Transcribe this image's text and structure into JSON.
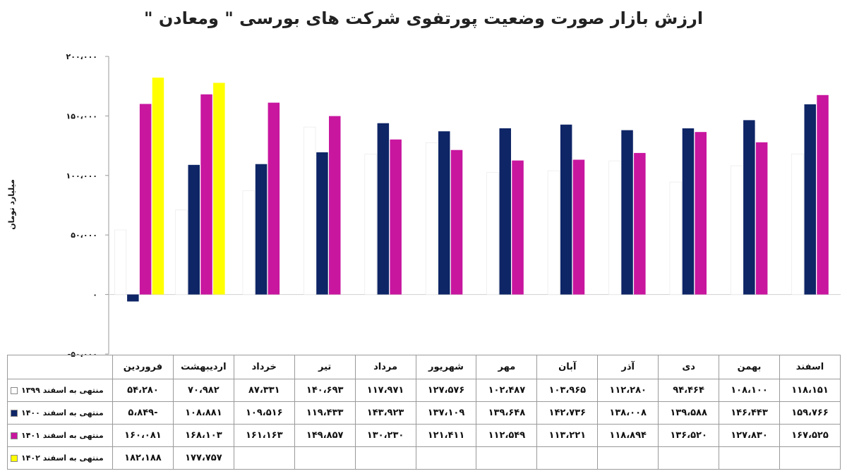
{
  "chart_data": {
    "type": "bar",
    "title": "ارزش بازار صورت وضعیت پورتفوی شرکت های بورسی \" ومعادن \"",
    "ylabel": "میلیارد تومان",
    "ylim": [
      -50000,
      200000
    ],
    "yticks": [
      -50000,
      0,
      50000,
      100000,
      150000,
      200000
    ],
    "ytick_labels": [
      "-۵۰،۰۰۰",
      "۰",
      "۵۰،۰۰۰",
      "۱۰۰،۰۰۰",
      "۱۵۰،۰۰۰",
      "۲۰۰،۰۰۰"
    ],
    "categories": [
      "فروردین",
      "اردیبهشت",
      "خرداد",
      "تیر",
      "مرداد",
      "شهریور",
      "مهر",
      "آبان",
      "آذر",
      "دی",
      "بهمن",
      "اسفند"
    ],
    "series": [
      {
        "name": "منتهی به اسفند ۱۳۹۹",
        "color": "#ffffff",
        "values": [
          54280,
          70982,
          87331,
          140693,
          117971,
          127576,
          102487,
          103965,
          112280,
          94464,
          108100,
          118151
        ],
        "labels": [
          "۵۴،۲۸۰",
          "۷۰،۹۸۲",
          "۸۷،۳۳۱",
          "۱۴۰،۶۹۳",
          "۱۱۷،۹۷۱",
          "۱۲۷،۵۷۶",
          "۱۰۲،۴۸۷",
          "۱۰۳،۹۶۵",
          "۱۱۲،۲۸۰",
          "۹۴،۴۶۴",
          "۱۰۸،۱۰۰",
          "۱۱۸،۱۵۱"
        ]
      },
      {
        "name": "منتهی به اسفند ۱۴۰۰",
        "color": "#0e2566",
        "values": [
          -5849,
          108881,
          109516,
          119433,
          143923,
          137109,
          139648,
          142736,
          138008,
          139588,
          146443,
          159766
        ],
        "labels": [
          "۵،۸۴۹-",
          "۱۰۸،۸۸۱",
          "۱۰۹،۵۱۶",
          "۱۱۹،۴۳۳",
          "۱۴۳،۹۲۳",
          "۱۳۷،۱۰۹",
          "۱۳۹،۶۴۸",
          "۱۴۲،۷۳۶",
          "۱۳۸،۰۰۸",
          "۱۳۹،۵۸۸",
          "۱۴۶،۴۴۳",
          "۱۵۹،۷۶۶"
        ]
      },
      {
        "name": "منتهی به اسفند ۱۴۰۱",
        "color": "#c8169f",
        "values": [
          160081,
          168103,
          161163,
          149857,
          130230,
          121411,
          112549,
          113221,
          118894,
          136520,
          127830,
          167525
        ],
        "labels": [
          "۱۶۰،۰۸۱",
          "۱۶۸،۱۰۳",
          "۱۶۱،۱۶۳",
          "۱۴۹،۸۵۷",
          "۱۳۰،۲۳۰",
          "۱۲۱،۴۱۱",
          "۱۱۲،۵۴۹",
          "۱۱۳،۲۲۱",
          "۱۱۸،۸۹۴",
          "۱۳۶،۵۲۰",
          "۱۲۷،۸۳۰",
          "۱۶۷،۵۲۵"
        ]
      },
      {
        "name": "منتهی به اسفند ۱۴۰۲",
        "color": "#ffff00",
        "values": [
          182188,
          177757,
          null,
          null,
          null,
          null,
          null,
          null,
          null,
          null,
          null,
          null
        ],
        "labels": [
          "۱۸۲،۱۸۸",
          "۱۷۷،۷۵۷",
          "",
          "",
          "",
          "",
          "",
          "",
          "",
          "",
          "",
          ""
        ]
      }
    ]
  }
}
